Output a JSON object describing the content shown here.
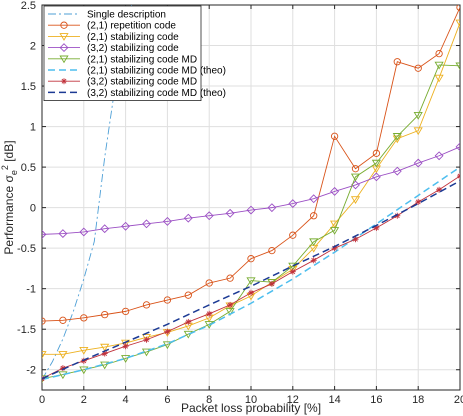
{
  "chart_data": {
    "type": "line",
    "xlabel": "Packet loss probability [%]",
    "ylabel": "Performance σ_e^2 [dB]",
    "xlim": [
      0,
      20
    ],
    "ylim": [
      -2.25,
      2.5
    ],
    "xticks": [
      0,
      2,
      4,
      6,
      8,
      10,
      12,
      14,
      16,
      18,
      20
    ],
    "yticks": [
      -2,
      -1.5,
      -1,
      -0.5,
      0,
      0.5,
      1,
      1.5,
      2,
      2.5
    ],
    "grid": true,
    "legend_position": "top-left",
    "series": [
      {
        "name": "Single description",
        "color": "#4d9fd6",
        "line": "dashdot",
        "marker": "none",
        "x": [
          0,
          0.5,
          1,
          1.5,
          2,
          2.5,
          3,
          3.5,
          4,
          4.5
        ],
        "y": [
          -2.12,
          -1.9,
          -1.62,
          -1.28,
          -0.88,
          -0.42,
          0.62,
          1.5,
          2.3,
          2.65
        ]
      },
      {
        "name": "(2,1) repetition code",
        "color": "#d95319",
        "line": "solid",
        "marker": "circle",
        "x": [
          0,
          1,
          2,
          3,
          4,
          5,
          6,
          7,
          8,
          9,
          10,
          11,
          12,
          13,
          14,
          15,
          16,
          17,
          18,
          19,
          20
        ],
        "y": [
          -1.4,
          -1.39,
          -1.36,
          -1.32,
          -1.28,
          -1.2,
          -1.14,
          -1.08,
          -0.93,
          -0.87,
          -0.63,
          -0.53,
          -0.34,
          -0.1,
          0.88,
          0.48,
          0.67,
          1.8,
          1.72,
          1.9,
          2.47
        ]
      },
      {
        "name": "(2,1) stabilizing code",
        "color": "#edb120",
        "line": "solid",
        "marker": "triangle-down",
        "x": [
          0,
          1,
          2,
          3,
          4,
          5,
          6,
          7,
          8,
          9,
          10,
          11,
          12,
          13,
          14,
          15,
          16,
          17,
          18,
          19,
          20
        ],
        "y": [
          -1.81,
          -1.81,
          -1.76,
          -1.72,
          -1.67,
          -1.6,
          -1.54,
          -1.46,
          -1.36,
          -1.21,
          -1.09,
          -0.92,
          -0.76,
          -0.5,
          -0.2,
          0.1,
          0.48,
          0.85,
          0.95,
          1.6,
          2.28
        ]
      },
      {
        "name": "(3,2) stabilizing code",
        "color": "#9b4fc4",
        "line": "solid",
        "marker": "diamond",
        "x": [
          0,
          1,
          2,
          3,
          4,
          5,
          6,
          7,
          8,
          9,
          10,
          11,
          12,
          13,
          14,
          15,
          16,
          17,
          18,
          19,
          20
        ],
        "y": [
          -0.33,
          -0.32,
          -0.3,
          -0.26,
          -0.23,
          -0.2,
          -0.17,
          -0.13,
          -0.1,
          -0.07,
          -0.03,
          0.0,
          0.05,
          0.11,
          0.2,
          0.28,
          0.38,
          0.45,
          0.55,
          0.64,
          0.75
        ]
      },
      {
        "name": "(2,1) stabilizing code MD",
        "color": "#77ac30",
        "line": "solid",
        "marker": "triangle-down",
        "x": [
          0,
          1,
          2,
          3,
          4,
          5,
          6,
          7,
          8,
          9,
          10,
          11,
          12,
          13,
          14,
          15,
          16,
          17,
          18,
          19,
          20
        ],
        "y": [
          -2.11,
          -2.06,
          -2.0,
          -1.94,
          -1.86,
          -1.78,
          -1.69,
          -1.56,
          -1.44,
          -1.28,
          -0.9,
          -0.92,
          -0.72,
          -0.42,
          -0.28,
          0.38,
          0.55,
          0.88,
          1.14,
          1.76,
          1.75
        ]
      },
      {
        "name": "(2,1) stabilizing code MD (theo)",
        "color": "#4dbeee",
        "line": "dashed",
        "marker": "none",
        "x": [
          0,
          2,
          4,
          6,
          8,
          10,
          12,
          14,
          16,
          18,
          20
        ],
        "y": [
          -2.12,
          -2.0,
          -1.86,
          -1.68,
          -1.45,
          -1.18,
          -0.88,
          -0.55,
          -0.2,
          0.15,
          0.5
        ]
      },
      {
        "name": "(3,2) stabilizing code MD",
        "color": "#c0303a",
        "line": "solid",
        "marker": "star",
        "x": [
          0,
          1,
          2,
          3,
          4,
          5,
          6,
          7,
          8,
          9,
          10,
          11,
          12,
          13,
          14,
          15,
          16,
          17,
          18,
          19,
          20
        ],
        "y": [
          -2.11,
          -1.98,
          -1.89,
          -1.8,
          -1.71,
          -1.63,
          -1.53,
          -1.41,
          -1.31,
          -1.2,
          -1.05,
          -0.94,
          -0.79,
          -0.65,
          -0.5,
          -0.39,
          -0.25,
          -0.1,
          0.07,
          0.22,
          0.39
        ]
      },
      {
        "name": "(3,2) stabilizing code MD (theo)",
        "color": "#1c3a94",
        "line": "dashed",
        "marker": "none",
        "x": [
          0,
          2,
          4,
          6,
          8,
          10,
          12,
          14,
          16,
          18,
          20
        ],
        "y": [
          -2.11,
          -1.88,
          -1.66,
          -1.44,
          -1.2,
          -0.97,
          -0.72,
          -0.48,
          -0.22,
          0.05,
          0.33
        ]
      }
    ]
  }
}
